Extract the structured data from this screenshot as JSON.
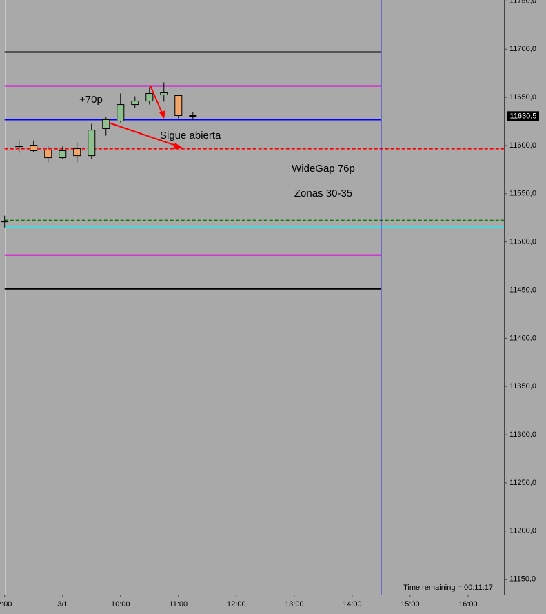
{
  "chart_data": {
    "type": "candlestick",
    "x": [
      8.0,
      8.25,
      8.5,
      8.75,
      9.0,
      9.25,
      9.5,
      9.75,
      10.0,
      10.25,
      10.5,
      10.75,
      11.0,
      11.25
    ],
    "open": [
      11521.5,
      11599.5,
      11600.3,
      11595.3,
      11587.4,
      11596.7,
      11589.5,
      11617.5,
      11625.4,
      11642.5,
      11646.1,
      11652.6,
      11651.9,
      11631.1
    ],
    "high": [
      11527.2,
      11605.3,
      11605.3,
      11599.6,
      11598.9,
      11603.2,
      11622.5,
      11629.7,
      11654.0,
      11651.1,
      11660.5,
      11665.5,
      11652.6,
      11634.7
    ],
    "low": [
      11515.0,
      11592.4,
      11593.1,
      11582.4,
      11586.0,
      11582.4,
      11586.0,
      11610.3,
      11624.0,
      11639.0,
      11642.5,
      11645.4,
      11628.2,
      11626.8
    ],
    "close": [
      11521.5,
      11599.5,
      11594.6,
      11587.4,
      11594.6,
      11589.5,
      11616.0,
      11626.8,
      11642.5,
      11646.1,
      11654.0,
      11654.7,
      11631.1,
      11630.5
    ],
    "up_color": "#90c090",
    "down_color": "#f5a66a",
    "xlim": [
      7.92,
      16.62
    ],
    "ylim": [
      11134,
      11751
    ],
    "xticks": [
      {
        "value": 8,
        "label": "2:00"
      },
      {
        "value": 9,
        "label": "3/1"
      },
      {
        "value": 10,
        "label": "10:00"
      },
      {
        "value": 11,
        "label": "11:00"
      },
      {
        "value": 12,
        "label": "12:00"
      },
      {
        "value": 13,
        "label": "13:00"
      },
      {
        "value": 14,
        "label": "14:00"
      },
      {
        "value": 15,
        "label": "15:00"
      },
      {
        "value": 16,
        "label": "16:00"
      }
    ],
    "yticks": [
      {
        "value": 11150,
        "label": "11150,0"
      },
      {
        "value": 11200,
        "label": "11200,0"
      },
      {
        "value": 11250,
        "label": "11250,0"
      },
      {
        "value": 11300,
        "label": "11300,0"
      },
      {
        "value": 11350,
        "label": "11350,0"
      },
      {
        "value": 11400,
        "label": "11400,0"
      },
      {
        "value": 11450,
        "label": "11450,0"
      },
      {
        "value": 11500,
        "label": "11500,0"
      },
      {
        "value": 11550,
        "label": "11550,0"
      },
      {
        "value": 11600,
        "label": "11600,0"
      },
      {
        "value": 11650,
        "label": "11650,0"
      },
      {
        "value": 11700,
        "label": "11700,0"
      },
      {
        "value": 11750,
        "label": "11750,0"
      }
    ],
    "price_tag": {
      "value": 11630.5,
      "label": "11630,5"
    },
    "hlines": [
      {
        "value": 11697,
        "color": "#000000",
        "dash": false,
        "x": [
          8.0,
          14.5
        ]
      },
      {
        "value": 11661.9,
        "color": "#e000e0",
        "dash": false,
        "x": [
          8.0,
          14.5
        ]
      },
      {
        "value": 11626.8,
        "color": "#0000ff",
        "dash": false,
        "x": [
          8.0,
          14.5
        ]
      },
      {
        "value": 11596.7,
        "color": "#ff0000",
        "dash": true,
        "x": [
          8.0,
          16.62
        ]
      },
      {
        "value": 11522.2,
        "color": "#008000",
        "dash": true,
        "x": [
          8.0,
          16.62
        ]
      },
      {
        "value": 11515.8,
        "color": "#40e0e0",
        "dash": false,
        "x": [
          8.0,
          16.62
        ]
      },
      {
        "value": 11486.4,
        "color": "#e000e0",
        "dash": false,
        "x": [
          8.0,
          14.5
        ]
      },
      {
        "value": 11451.3,
        "color": "#000000",
        "dash": false,
        "x": [
          8.0,
          14.5
        ]
      }
    ],
    "vlines": [
      {
        "x": 14.5,
        "color": "#0000ff"
      }
    ],
    "annotations": [
      "+70p",
      "Sigue abierta",
      "WideGap 76p",
      "Zonas 30-35"
    ],
    "footer": "Time remaining = 00:11:17"
  }
}
